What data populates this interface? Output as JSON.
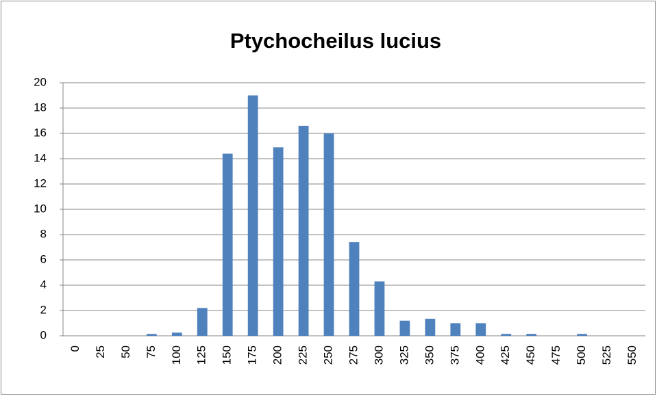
{
  "chart_data": {
    "type": "bar",
    "title": "Ptychocheilus lucius",
    "categories": [
      "0",
      "25",
      "50",
      "75",
      "100",
      "125",
      "150",
      "175",
      "200",
      "225",
      "250",
      "275",
      "300",
      "325",
      "350",
      "375",
      "400",
      "425",
      "450",
      "475",
      "500",
      "525",
      "550"
    ],
    "values": [
      0,
      0,
      0,
      0.15,
      0.25,
      2.2,
      14.4,
      19,
      14.9,
      16.6,
      16,
      7.4,
      4.3,
      1.2,
      1.35,
      1,
      1,
      0.15,
      0.15,
      0,
      0.15,
      0,
      0
    ],
    "color": "#4f81bd",
    "ylim": [
      0,
      20
    ],
    "yticks": [
      0,
      2,
      4,
      6,
      8,
      10,
      12,
      14,
      16,
      18,
      20
    ],
    "grid": true
  }
}
